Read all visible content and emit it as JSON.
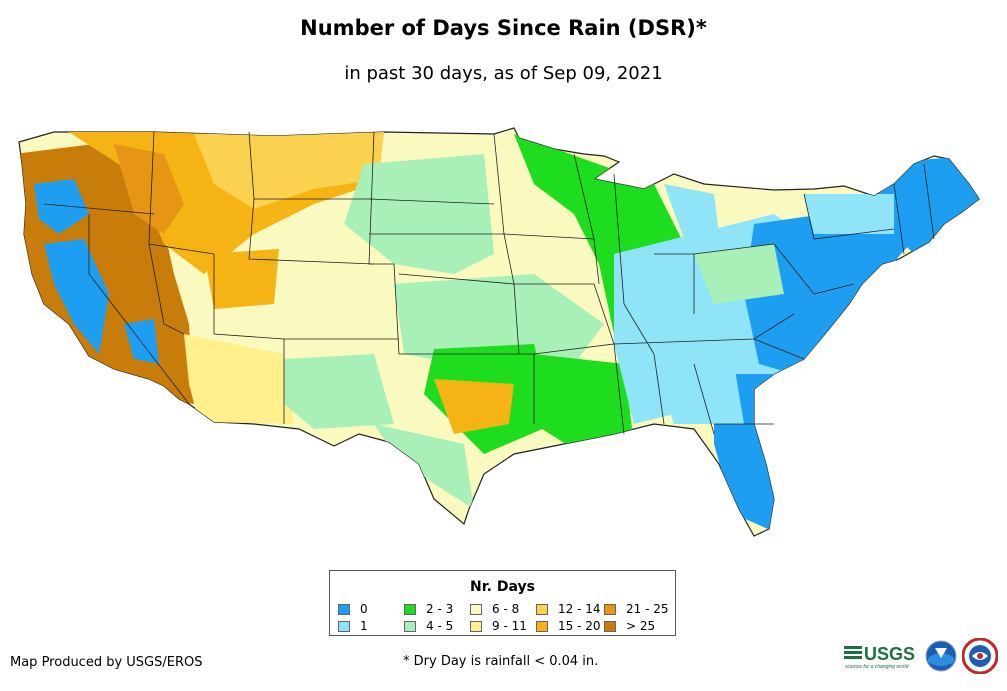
{
  "title": "Number of Days Since Rain (DSR)*",
  "subtitle": "in past 30 days, as of Sep 09, 2021",
  "legend": {
    "title": "Nr. Days",
    "items": [
      {
        "label": "0",
        "color": "#1e9ef0"
      },
      {
        "label": "1",
        "color": "#8fe4f8"
      },
      {
        "label": "2 - 3",
        "color": "#1edc1e"
      },
      {
        "label": "4 - 5",
        "color": "#a8f0b8"
      },
      {
        "label": "6 - 8",
        "color": "#fafac0"
      },
      {
        "label": "9 - 11",
        "color": "#fff08c"
      },
      {
        "label": "12 - 14",
        "color": "#fad250"
      },
      {
        "label": "15 - 20",
        "color": "#f5b414"
      },
      {
        "label": "21 - 25",
        "color": "#e69614"
      },
      {
        "label": "> 25",
        "color": "#c87d0a"
      }
    ]
  },
  "credit": "Map Produced by USGS/EROS",
  "footnote": "* Dry Day is rainfall < 0.04 in.",
  "logos": {
    "usgs": "USGS",
    "usgs_tagline": "science for a changing world"
  },
  "map_colors": {
    "land_background": "#fafac0",
    "state_border": "#222222"
  }
}
